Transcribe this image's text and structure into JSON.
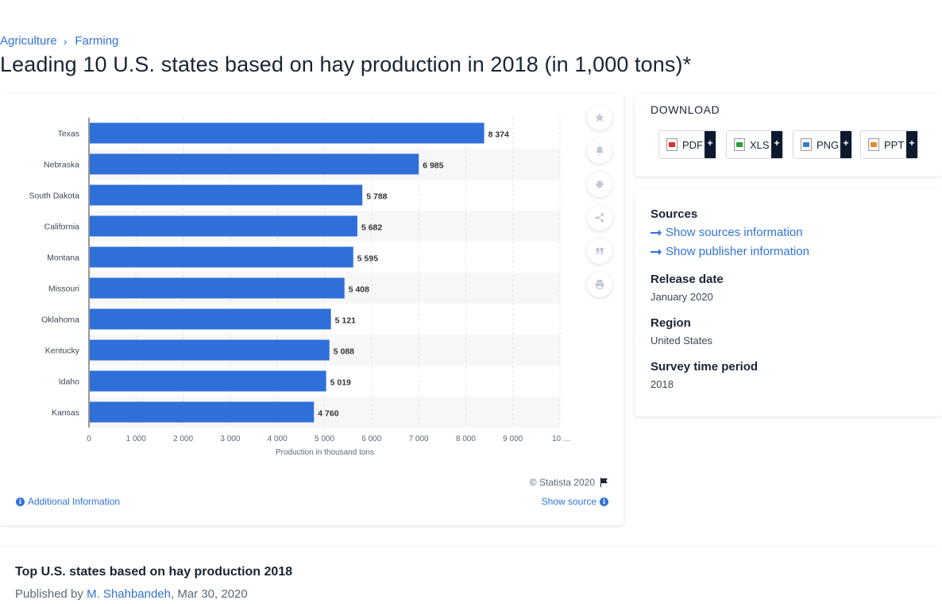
{
  "breadcrumb": {
    "items": [
      "Agriculture",
      "Farming"
    ],
    "separator": "›"
  },
  "title": "Leading 10 U.S. states based on hay production in 2018 (in 1,000 tons)*",
  "chart_data": {
    "type": "bar",
    "orientation": "horizontal",
    "categories": [
      "Texas",
      "Nebraska",
      "South Dakota",
      "California",
      "Montana",
      "Missouri",
      "Oklahoma",
      "Kentucky",
      "Idaho",
      "Kansas"
    ],
    "values": [
      8374,
      6985,
      5788,
      5682,
      5595,
      5408,
      5121,
      5088,
      5019,
      4760
    ],
    "value_labels": [
      "8 374",
      "6 985",
      "5 788",
      "5 682",
      "5 595",
      "5 408",
      "5 121",
      "5 088",
      "5 019",
      "4 760"
    ],
    "xlabel": "Production in thousand tons",
    "x_ticks": [
      "0",
      "1 000",
      "2 000",
      "3 000",
      "4 000",
      "5 000",
      "6 000",
      "7 000",
      "8 000",
      "9 000",
      "10 …"
    ],
    "xlim": [
      0,
      10000
    ],
    "bar_color": "#2f6fd8",
    "grid": true
  },
  "chart_footer": {
    "copyright": "© Statista 2020",
    "additional_info": "Additional Information",
    "show_source": "Show source"
  },
  "download": {
    "title": "DOWNLOAD",
    "buttons": [
      {
        "label": "PDF",
        "color": "#d9342b"
      },
      {
        "label": "XLS",
        "color": "#2e9b3f"
      },
      {
        "label": "PNG",
        "color": "#3a7bd5"
      },
      {
        "label": "PPT",
        "color": "#e88a2a"
      }
    ],
    "plus": "+"
  },
  "info": {
    "sources_heading": "Sources",
    "show_sources": "Show sources information",
    "show_publisher": "Show publisher information",
    "release_heading": "Release date",
    "release_value": "January 2020",
    "region_heading": "Region",
    "region_value": "United States",
    "survey_heading": "Survey time period",
    "survey_value": "2018"
  },
  "bottom": {
    "title": "Top U.S. states based on hay production 2018",
    "published_prefix": "Published by",
    "author": "M. Shahbandeh",
    "date": ", Mar 30, 2020"
  }
}
